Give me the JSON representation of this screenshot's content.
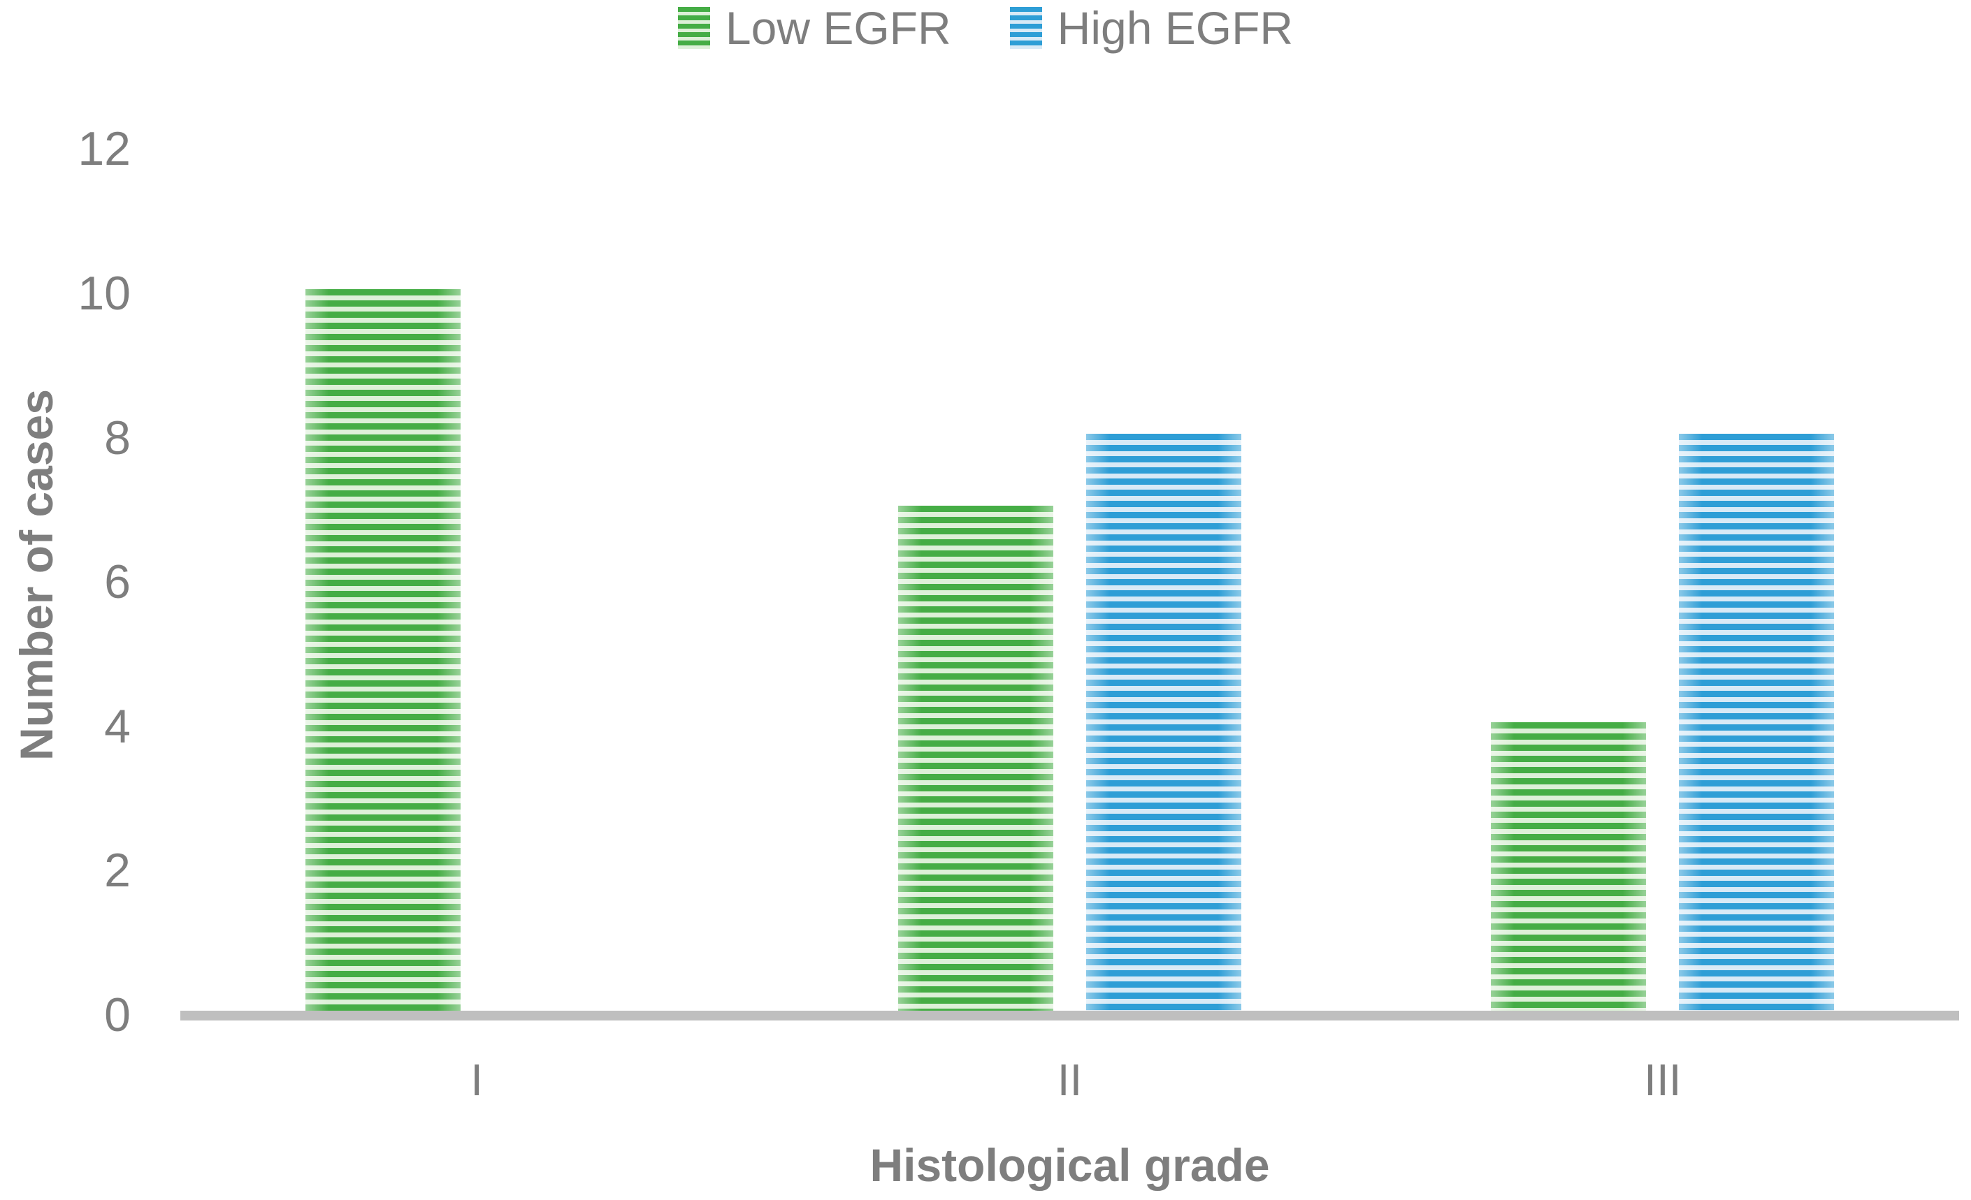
{
  "chart_data": {
    "type": "bar",
    "title": "",
    "categories": [
      "I",
      "II",
      "III"
    ],
    "series": [
      {
        "name": "Low EGFR",
        "values": [
          10,
          7,
          4
        ],
        "stripe_dark": "#45AD45",
        "stripe_light": "#DDF0D8"
      },
      {
        "name": "High EGFR",
        "values": [
          0,
          8,
          8
        ],
        "stripe_dark": "#2E9ED6",
        "stripe_light": "#D8EAF6"
      }
    ],
    "xlabel": "Histological grade",
    "ylabel": "Number of cases",
    "ylim": [
      0,
      12
    ],
    "yticks": [
      0,
      2,
      4,
      6,
      8,
      10,
      12
    ],
    "grid": false,
    "legend_position": "top-center",
    "bar_fill_pattern": "horizontal-stripes"
  },
  "colors": {
    "text": "#7E7E7E",
    "axis_line": "#BFBFBF",
    "background": "#FFFFFF"
  }
}
